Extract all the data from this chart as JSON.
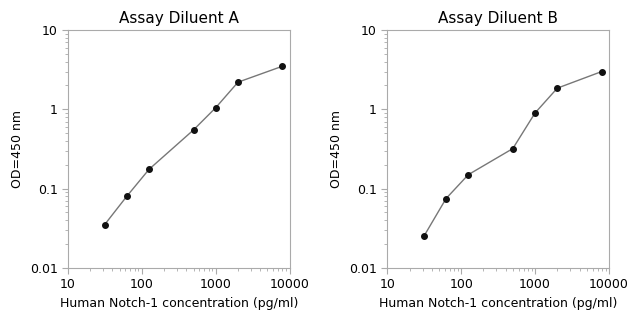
{
  "panel_A": {
    "title": "Assay Diluent A",
    "x": [
      31.25,
      62.5,
      125,
      500,
      1000,
      2000,
      8000
    ],
    "y": [
      0.035,
      0.08,
      0.175,
      0.55,
      1.05,
      2.2,
      3.5
    ]
  },
  "panel_B": {
    "title": "Assay Diluent B",
    "x": [
      31.25,
      62.5,
      125,
      500,
      1000,
      2000,
      8000
    ],
    "y": [
      0.025,
      0.075,
      0.15,
      0.32,
      0.9,
      1.85,
      3.0
    ]
  },
  "xlabel": "Human Notch-1 concentration (pg/ml)",
  "ylabel": "OD=450 nm",
  "xlim": [
    10,
    10000
  ],
  "ylim": [
    0.01,
    10
  ],
  "xticks": [
    10,
    100,
    1000,
    10000
  ],
  "xtick_labels": [
    "10",
    "100",
    "1000",
    "10000"
  ],
  "yticks": [
    0.01,
    0.1,
    1,
    10
  ],
  "ytick_labels": [
    "0.01",
    "0.1",
    "1",
    "10"
  ],
  "line_color": "#777777",
  "marker": "o",
  "marker_color": "#111111",
  "marker_size": 4,
  "linewidth": 1.0,
  "title_fontsize": 11,
  "label_fontsize": 9,
  "tick_fontsize": 9,
  "spine_color": "#aaaaaa",
  "background_color": "#ffffff"
}
